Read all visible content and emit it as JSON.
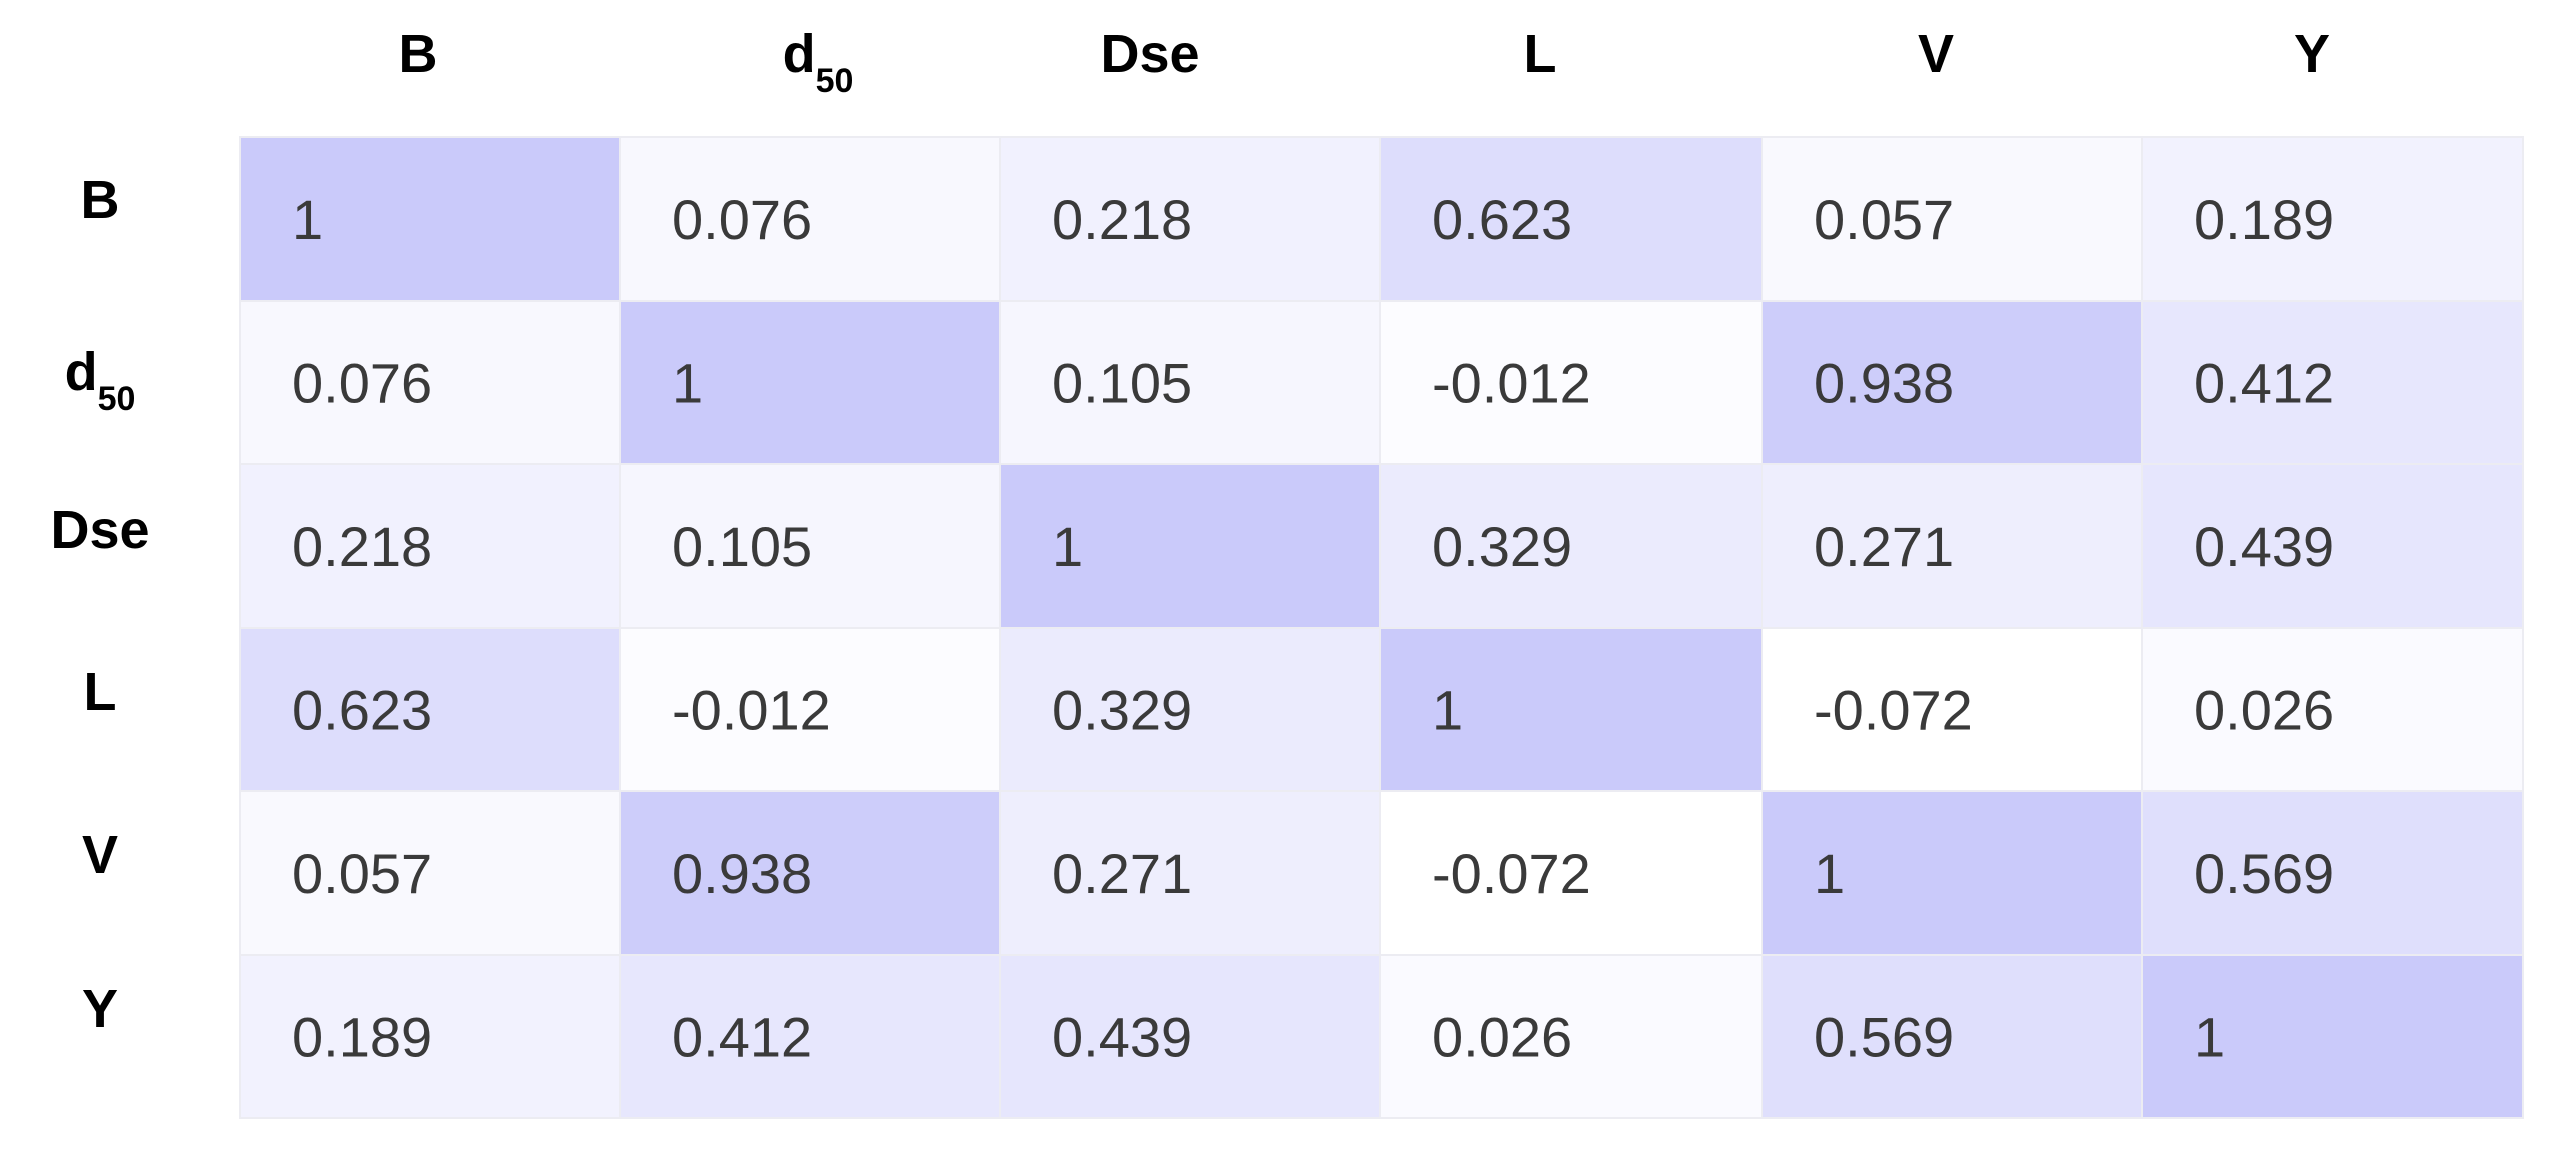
{
  "chart_data": {
    "type": "heatmap",
    "title": "",
    "xlabel": "",
    "ylabel": "",
    "legend": "none",
    "grid": true,
    "columns": [
      {
        "main": "B",
        "sub": ""
      },
      {
        "main": "d",
        "sub": "50"
      },
      {
        "main": "Dse",
        "sub": ""
      },
      {
        "main": "L",
        "sub": ""
      },
      {
        "main": "V",
        "sub": ""
      },
      {
        "main": "Y",
        "sub": ""
      }
    ],
    "rows": [
      {
        "main": "B",
        "sub": ""
      },
      {
        "main": "d",
        "sub": "50"
      },
      {
        "main": "Dse",
        "sub": ""
      },
      {
        "main": "L",
        "sub": ""
      },
      {
        "main": "V",
        "sub": ""
      },
      {
        "main": "Y",
        "sub": ""
      }
    ],
    "values": [
      [
        "1",
        "0.076",
        "0.218",
        "0.623",
        "0.057",
        "0.189"
      ],
      [
        "0.076",
        "1",
        "0.105",
        "-0.012",
        "0.938",
        "0.412"
      ],
      [
        "0.218",
        "0.105",
        "1",
        "0.329",
        "0.271",
        "0.439"
      ],
      [
        "0.623",
        "-0.012",
        "0.329",
        "1",
        "-0.072",
        "0.026"
      ],
      [
        "0.057",
        "0.938",
        "0.271",
        "-0.072",
        "1",
        "0.569"
      ],
      [
        "0.189",
        "0.412",
        "0.439",
        "0.026",
        "0.569",
        "1"
      ]
    ],
    "color_scale": {
      "low_value": -0.072,
      "high_value": 1,
      "low_color": "#ffffff",
      "high_color": "#cacafa"
    },
    "gridline_color": "#ececf2"
  }
}
